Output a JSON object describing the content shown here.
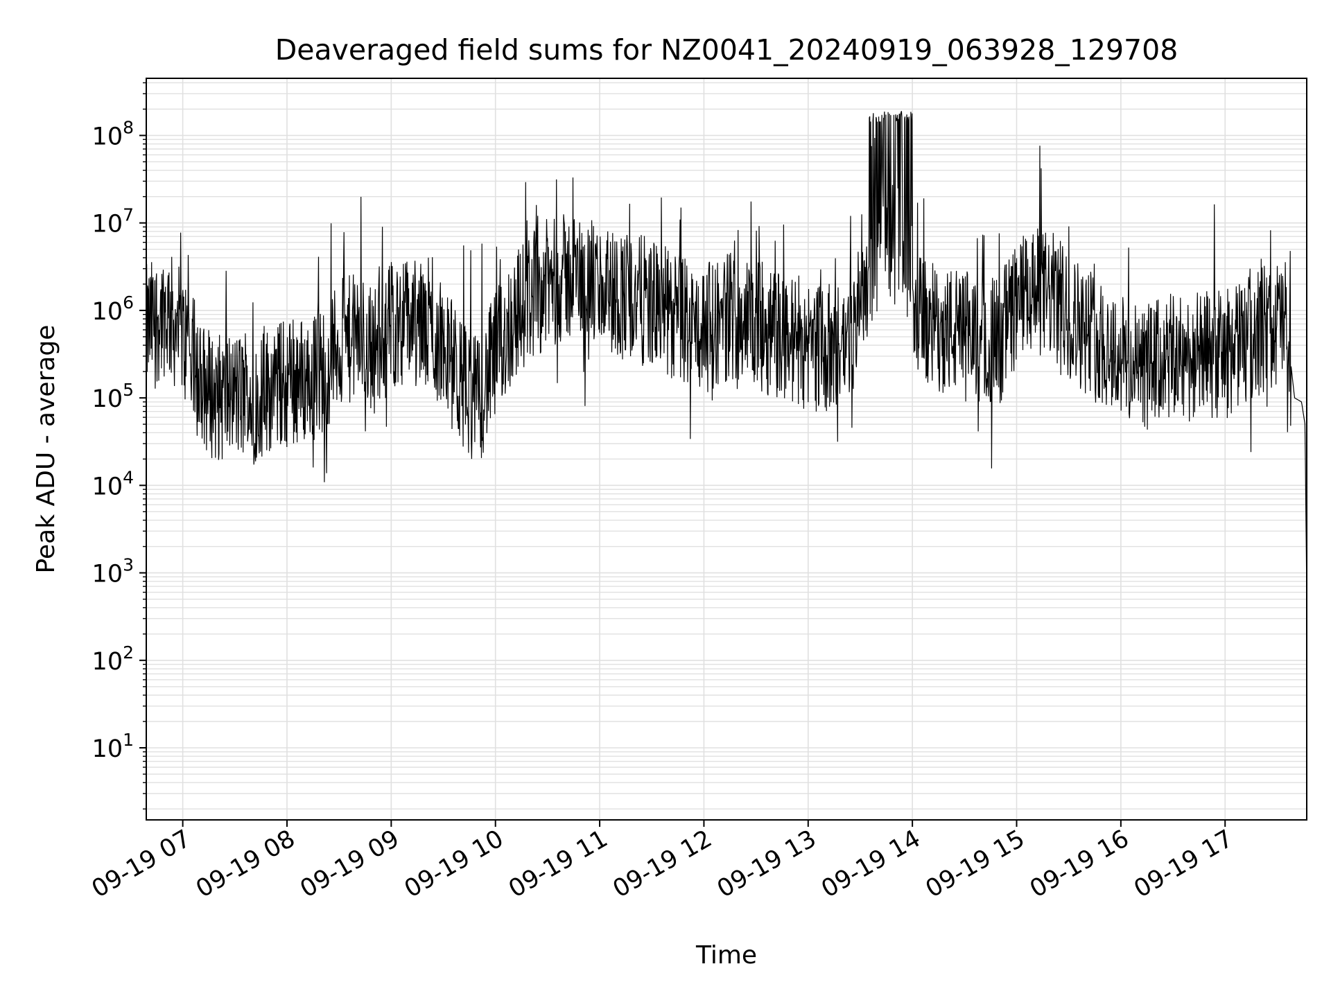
{
  "chart_data": {
    "type": "line",
    "title": "Deaveraged field sums for NZ0041_20240919_063928_129708",
    "xlabel": "Time",
    "ylabel": "Peak ADU - average",
    "yscale": "log",
    "ylim": [
      1.5,
      450000000
    ],
    "xlim": [
      "2024-09-19 06:39",
      "2024-09-19 17:47"
    ],
    "grid": true,
    "line_color": "#000000",
    "grid_color": "#e0e0e0",
    "x_ticks": [
      {
        "value": "2024-09-19 07:00",
        "label": "09-19 07"
      },
      {
        "value": "2024-09-19 08:00",
        "label": "09-19 08"
      },
      {
        "value": "2024-09-19 09:00",
        "label": "09-19 09"
      },
      {
        "value": "2024-09-19 10:00",
        "label": "09-19 10"
      },
      {
        "value": "2024-09-19 11:00",
        "label": "09-19 11"
      },
      {
        "value": "2024-09-19 12:00",
        "label": "09-19 12"
      },
      {
        "value": "2024-09-19 13:00",
        "label": "09-19 13"
      },
      {
        "value": "2024-09-19 14:00",
        "label": "09-19 14"
      },
      {
        "value": "2024-09-19 15:00",
        "label": "09-19 15"
      },
      {
        "value": "2024-09-19 16:00",
        "label": "09-19 16"
      },
      {
        "value": "2024-09-19 17:00",
        "label": "09-19 17"
      }
    ],
    "y_ticks": [
      {
        "value": 10,
        "base": "10",
        "exp": "1"
      },
      {
        "value": 100,
        "base": "10",
        "exp": "2"
      },
      {
        "value": 1000,
        "base": "10",
        "exp": "3"
      },
      {
        "value": 10000,
        "base": "10",
        "exp": "4"
      },
      {
        "value": 100000,
        "base": "10",
        "exp": "5"
      },
      {
        "value": 1000000,
        "base": "10",
        "exp": "6"
      },
      {
        "value": 10000000,
        "base": "10",
        "exp": "7"
      },
      {
        "value": 100000000,
        "base": "10",
        "exp": "8"
      }
    ],
    "series": [
      {
        "x": [
          "2024-09-19 06:39",
          "2024-09-19 06:45",
          "2024-09-19 06:50",
          "2024-09-19 06:55",
          "2024-09-19 07:00",
          "2024-09-19 07:05",
          "2024-09-19 07:10",
          "2024-09-19 07:15",
          "2024-09-19 07:20",
          "2024-09-19 07:30",
          "2024-09-19 07:40",
          "2024-09-19 07:50",
          "2024-09-19 08:00",
          "2024-09-19 08:10",
          "2024-09-19 08:20",
          "2024-09-19 08:30",
          "2024-09-19 08:40",
          "2024-09-19 08:50",
          "2024-09-19 09:00",
          "2024-09-19 09:10",
          "2024-09-19 09:20",
          "2024-09-19 09:30",
          "2024-09-19 09:40",
          "2024-09-19 09:50",
          "2024-09-19 10:00",
          "2024-09-19 10:10",
          "2024-09-19 10:20",
          "2024-09-19 10:30",
          "2024-09-19 10:45",
          "2024-09-19 11:00",
          "2024-09-19 11:15",
          "2024-09-19 11:30",
          "2024-09-19 11:45",
          "2024-09-19 12:00",
          "2024-09-19 12:15",
          "2024-09-19 12:30",
          "2024-09-19 12:45",
          "2024-09-19 13:00",
          "2024-09-19 13:15",
          "2024-09-19 13:25",
          "2024-09-19 13:35",
          "2024-09-19 13:45",
          "2024-09-19 13:55",
          "2024-09-19 14:05",
          "2024-09-19 14:20",
          "2024-09-19 14:35",
          "2024-09-19 14:50",
          "2024-09-19 15:00",
          "2024-09-19 15:10",
          "2024-09-19 15:20",
          "2024-09-19 15:30",
          "2024-09-19 15:45",
          "2024-09-19 16:00",
          "2024-09-19 16:10",
          "2024-09-19 16:20",
          "2024-09-19 16:30",
          "2024-09-19 16:45",
          "2024-09-19 17:00",
          "2024-09-19 17:10",
          "2024-09-19 17:20",
          "2024-09-19 17:30",
          "2024-09-19 17:35",
          "2024-09-19 17:40",
          "2024-09-19 17:44",
          "2024-09-19 17:46",
          "2024-09-19 17:47"
        ],
        "y": [
          600000,
          800000,
          1000000,
          700000,
          500000,
          300000,
          150000,
          120000,
          100000,
          110000,
          90000,
          130000,
          150000,
          160000,
          200000,
          400000,
          500000,
          350000,
          700000,
          800000,
          600000,
          400000,
          150000,
          90000,
          300000,
          800000,
          1500000,
          2000000,
          2500000,
          1800000,
          1500000,
          1200000,
          800000,
          600000,
          900000,
          700000,
          500000,
          400000,
          350000,
          500000,
          3000000,
          8000000,
          5000000,
          700000,
          600000,
          500000,
          450000,
          1200000,
          1600000,
          1500000,
          900000,
          500000,
          300000,
          200000,
          250000,
          280000,
          300000,
          320000,
          400000,
          600000,
          700000,
          800000,
          100000,
          90000,
          50000,
          500
        ]
      }
    ]
  }
}
